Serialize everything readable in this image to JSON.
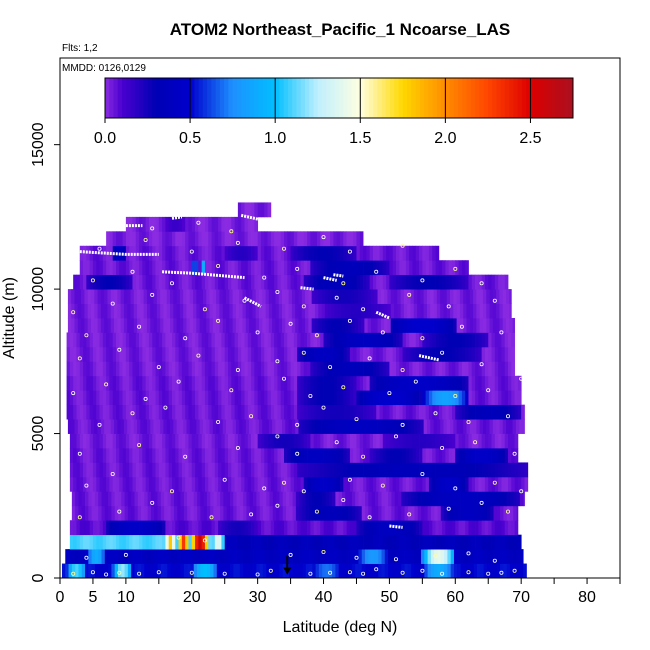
{
  "chart_data": {
    "type": "heatmap",
    "title": "ATOM2 Northeast_Pacific_1 Ncoarse_LAS",
    "subtitle_flights": "Flts: 1,2",
    "subtitle_dates": "MMDD: 0126,0129",
    "xlabel": "Latitude (deg N)",
    "ylabel": "Altitude (m)",
    "xlim": [
      0,
      85
    ],
    "ylim": [
      0,
      18000
    ],
    "x_ticks": [
      0,
      5,
      10,
      20,
      30,
      40,
      50,
      60,
      70,
      80
    ],
    "y_ticks": [
      0,
      5000,
      10000,
      15000
    ],
    "colorbar": {
      "range": [
        0,
        2.75
      ],
      "ticks": [
        0.0,
        0.5,
        1.0,
        1.5,
        2.0,
        2.5
      ],
      "stops": [
        {
          "v": 0.0,
          "color": "#8a2be2"
        },
        {
          "v": 0.1,
          "color": "#4b00d0"
        },
        {
          "v": 0.3,
          "color": "#0000b4"
        },
        {
          "v": 0.5,
          "color": "#0000cd"
        },
        {
          "v": 0.75,
          "color": "#1e90ff"
        },
        {
          "v": 1.0,
          "color": "#00bfff"
        },
        {
          "v": 1.25,
          "color": "#bfefff"
        },
        {
          "v": 1.5,
          "color": "#ffffe0"
        },
        {
          "v": 1.75,
          "color": "#ffd700"
        },
        {
          "v": 2.0,
          "color": "#ff8c00"
        },
        {
          "v": 2.25,
          "color": "#ff4500"
        },
        {
          "v": 2.5,
          "color": "#dd0000"
        },
        {
          "v": 2.75,
          "color": "#aa1020"
        }
      ]
    },
    "layers": [
      {
        "y0": 0,
        "y1": 500,
        "x0": 0.3,
        "x1": 70.8,
        "base": 0.5,
        "features": [
          [
            1,
            4,
            1.1
          ],
          [
            8,
            11,
            1.2
          ],
          [
            20,
            24,
            1.0
          ],
          [
            33,
            36,
            0.4
          ],
          [
            38,
            43,
            0.7
          ],
          [
            55,
            60,
            0.9
          ]
        ]
      },
      {
        "y0": 500,
        "y1": 1000,
        "x0": 0.8,
        "x1": 70.3,
        "base": 0.4,
        "features": [
          [
            4,
            7,
            0.9
          ],
          [
            45,
            50,
            0.8
          ],
          [
            55,
            60,
            1.4
          ]
        ]
      },
      {
        "y0": 1000,
        "y1": 1500,
        "x0": 1.5,
        "x1": 25,
        "base": 1.1,
        "features": [
          [
            16,
            17.5,
            1.8
          ],
          [
            18,
            19.5,
            2.3
          ],
          [
            20,
            22.5,
            2.6
          ],
          [
            23,
            25,
            1.4
          ]
        ]
      },
      {
        "y0": 1000,
        "y1": 1500,
        "x0": 25,
        "x1": 70,
        "base": 0.35,
        "features": [
          [
            40,
            46,
            0.1
          ],
          [
            60,
            66,
            0.3
          ]
        ]
      },
      {
        "y0": 1500,
        "y1": 2000,
        "x0": 1.5,
        "x1": 69.5,
        "base": 0.08,
        "features": [
          [
            7,
            16,
            0.45
          ],
          [
            24,
            30,
            0.25
          ],
          [
            45,
            55,
            0.4
          ]
        ]
      },
      {
        "y0": 2000,
        "y1": 2500,
        "x0": 1.8,
        "x1": 69.5,
        "base": 0.05,
        "features": [
          [
            36,
            46,
            0.35
          ],
          [
            58,
            66,
            0.4
          ]
        ]
      },
      {
        "y0": 2500,
        "y1": 3000,
        "x0": 1.8,
        "x1": 70.5,
        "base": 0.05,
        "features": [
          [
            36,
            42,
            0.3
          ],
          [
            52,
            70,
            0.4
          ]
        ]
      },
      {
        "y0": 3000,
        "y1": 3500,
        "x0": 1.5,
        "x1": 71.0,
        "base": 0.05,
        "features": [
          [
            37,
            43,
            0.45
          ],
          [
            56,
            62,
            0.45
          ]
        ]
      },
      {
        "y0": 3500,
        "y1": 4000,
        "x0": 1.5,
        "x1": 71.0,
        "base": 0.05,
        "features": [
          [
            36,
            71,
            0.35
          ]
        ]
      },
      {
        "y0": 4000,
        "y1": 4500,
        "x0": 1.5,
        "x1": 69.5,
        "base": 0.05,
        "features": [
          [
            34,
            44,
            0.4
          ],
          [
            47,
            55,
            0.3
          ],
          [
            60,
            68,
            0.45
          ]
        ]
      },
      {
        "y0": 4500,
        "y1": 5000,
        "x0": 1.5,
        "x1": 69.5,
        "base": 0.04,
        "features": [
          [
            30,
            38,
            0.25
          ],
          [
            49,
            60,
            0.2
          ]
        ]
      },
      {
        "y0": 5000,
        "y1": 5500,
        "x0": 1.2,
        "x1": 70.5,
        "base": 0.05,
        "features": [
          [
            36,
            55,
            0.4
          ]
        ]
      },
      {
        "y0": 5500,
        "y1": 6000,
        "x0": 1.0,
        "x1": 70.5,
        "base": 0.05,
        "features": [
          [
            36,
            48,
            0.25
          ],
          [
            60,
            70,
            0.35
          ]
        ]
      },
      {
        "y0": 6000,
        "y1": 6500,
        "x0": 1.0,
        "x1": 70.0,
        "base": 0.05,
        "features": [
          [
            36,
            45,
            0.3
          ],
          [
            55,
            62,
            0.85
          ],
          [
            45,
            55,
            0.5
          ]
        ]
      },
      {
        "y0": 6500,
        "y1": 7000,
        "x0": 1.0,
        "x1": 70.0,
        "base": 0.05,
        "features": [
          [
            36,
            45,
            0.3
          ],
          [
            47,
            62,
            0.45
          ]
        ]
      },
      {
        "y0": 7000,
        "y1": 7500,
        "x0": 1.0,
        "x1": 69.0,
        "base": 0.04,
        "features": [
          [
            38,
            50,
            0.35
          ]
        ]
      },
      {
        "y0": 7500,
        "y1": 8000,
        "x0": 1.0,
        "x1": 69.0,
        "base": 0.04,
        "features": [
          [
            36,
            44,
            0.4
          ],
          [
            52,
            64,
            0.3
          ]
        ]
      },
      {
        "y0": 8000,
        "y1": 8500,
        "x0": 1.0,
        "x1": 69.0,
        "base": 0.04,
        "features": [
          [
            40,
            52,
            0.4
          ],
          [
            55,
            65,
            0.3
          ]
        ]
      },
      {
        "y0": 8500,
        "y1": 9000,
        "x0": 1.2,
        "x1": 69.0,
        "base": 0.04,
        "features": [
          [
            38,
            46,
            0.3
          ],
          [
            50,
            60,
            0.5
          ]
        ]
      },
      {
        "y0": 9000,
        "y1": 9500,
        "x0": 1.2,
        "x1": 68.5,
        "base": 0.04,
        "features": [
          [
            40,
            50,
            0.2
          ]
        ]
      },
      {
        "y0": 9500,
        "y1": 10000,
        "x0": 1.2,
        "x1": 68.5,
        "base": 0.04,
        "features": [
          [
            38,
            48,
            0.25
          ]
        ]
      },
      {
        "y0": 10000,
        "y1": 10500,
        "x0": 2.0,
        "x1": 68.0,
        "base": 0.05,
        "features": [
          [
            4,
            11,
            0.3
          ],
          [
            37,
            47,
            0.35
          ],
          [
            50,
            62,
            0.3
          ]
        ]
      },
      {
        "y0": 10500,
        "y1": 11000,
        "x0": 3.0,
        "x1": 62.0,
        "base": 0.05,
        "features": [
          [
            20,
            21,
            0.7
          ],
          [
            21.5,
            22,
            0.9
          ],
          [
            38,
            50,
            0.35
          ]
        ]
      },
      {
        "y0": 11000,
        "y1": 11500,
        "x0": 3.0,
        "x1": 57.5,
        "base": 0.05,
        "features": [
          [
            8,
            10,
            0.45
          ],
          [
            25,
            30,
            0.2
          ],
          [
            35,
            45,
            0.3
          ]
        ]
      },
      {
        "y0": 11500,
        "y1": 12000,
        "x0": 7.0,
        "x1": 46.0,
        "base": 0.03,
        "features": []
      },
      {
        "y0": 12000,
        "y1": 12500,
        "x0": 10.0,
        "x1": 30.0,
        "base": 0.03,
        "features": [
          [
            16,
            19,
            0.15
          ]
        ]
      },
      {
        "y0": 12500,
        "y1": 13000,
        "x0": 27.0,
        "x1": 32.0,
        "base": 0.03,
        "features": []
      }
    ],
    "flight_tracks": [
      [
        [
          3.0,
          11300
        ],
        [
          10.0,
          11200
        ],
        [
          15.0,
          11200
        ]
      ],
      [
        [
          15.5,
          10600
        ],
        [
          20.0,
          10550
        ],
        [
          28.0,
          10400
        ]
      ],
      [
        [
          27.5,
          12550
        ],
        [
          30.5,
          12400
        ]
      ],
      [
        [
          28.0,
          9700
        ],
        [
          30.5,
          9400
        ]
      ],
      [
        [
          36.5,
          10050
        ],
        [
          38.5,
          10000
        ]
      ],
      [
        [
          41.5,
          10500
        ],
        [
          43.0,
          10450
        ]
      ],
      [
        [
          48.0,
          9200
        ],
        [
          50.0,
          9000
        ]
      ],
      [
        [
          65.0,
          11000
        ],
        [
          67.5,
          11050
        ]
      ],
      [
        [
          10.0,
          12200
        ],
        [
          12.5,
          12200
        ]
      ],
      [
        [
          17.0,
          12450
        ],
        [
          18.5,
          12500
        ]
      ],
      [
        [
          40.0,
          10400
        ],
        [
          42.0,
          10300
        ]
      ],
      [
        [
          54.5,
          7700
        ],
        [
          57.5,
          7550
        ]
      ],
      [
        [
          50.0,
          1800
        ],
        [
          52.0,
          1750
        ]
      ]
    ],
    "markers": [
      [
        2,
        150
      ],
      [
        5,
        200
      ],
      [
        7,
        120
      ],
      [
        9,
        180
      ],
      [
        12,
        150
      ],
      [
        15,
        200
      ],
      [
        20,
        180
      ],
      [
        25,
        150
      ],
      [
        30,
        120
      ],
      [
        32,
        250
      ],
      [
        38,
        150
      ],
      [
        41,
        180
      ],
      [
        44,
        200
      ],
      [
        46,
        150
      ],
      [
        48,
        300
      ],
      [
        52,
        180
      ],
      [
        55,
        250
      ],
      [
        58,
        150
      ],
      [
        62,
        200
      ],
      [
        65,
        150
      ],
      [
        67,
        180
      ],
      [
        69,
        250
      ],
      [
        4,
        700
      ],
      [
        10,
        800
      ],
      [
        18,
        1400
      ],
      [
        22,
        1300
      ],
      [
        35,
        800
      ],
      [
        40,
        900
      ],
      [
        45,
        700
      ],
      [
        51,
        650
      ],
      [
        57,
        750
      ],
      [
        62,
        850
      ],
      [
        66,
        600
      ],
      [
        3,
        2100
      ],
      [
        9,
        2300
      ],
      [
        14,
        2600
      ],
      [
        23,
        2100
      ],
      [
        29,
        2200
      ],
      [
        33,
        2500
      ],
      [
        39,
        2300
      ],
      [
        43,
        2700
      ],
      [
        47,
        2100
      ],
      [
        53,
        2200
      ],
      [
        59,
        2400
      ],
      [
        64,
        2600
      ],
      [
        68,
        2300
      ],
      [
        4,
        3200
      ],
      [
        8,
        3600
      ],
      [
        17,
        3000
      ],
      [
        25,
        3400
      ],
      [
        31,
        3100
      ],
      [
        34,
        3300
      ],
      [
        37,
        3000
      ],
      [
        44,
        3400
      ],
      [
        49,
        3200
      ],
      [
        55,
        3600
      ],
      [
        60,
        3100
      ],
      [
        66,
        3300
      ],
      [
        70,
        3000
      ],
      [
        3,
        4300
      ],
      [
        12,
        4600
      ],
      [
        19,
        4200
      ],
      [
        27,
        4500
      ],
      [
        33,
        4900
      ],
      [
        36,
        4300
      ],
      [
        42,
        4700
      ],
      [
        46,
        4200
      ],
      [
        51,
        4900
      ],
      [
        58,
        4500
      ],
      [
        63,
        4700
      ],
      [
        69,
        4300
      ],
      [
        6,
        5300
      ],
      [
        11,
        5700
      ],
      [
        16,
        5900
      ],
      [
        24,
        5400
      ],
      [
        29,
        5600
      ],
      [
        36,
        5300
      ],
      [
        40,
        5900
      ],
      [
        45,
        5500
      ],
      [
        52,
        5300
      ],
      [
        57,
        5700
      ],
      [
        62,
        5400
      ],
      [
        68,
        5600
      ],
      [
        2,
        6400
      ],
      [
        7,
        6700
      ],
      [
        13,
        6200
      ],
      [
        18,
        6800
      ],
      [
        26,
        6500
      ],
      [
        34,
        6900
      ],
      [
        38,
        6300
      ],
      [
        43,
        6600
      ],
      [
        50,
        6400
      ],
      [
        54,
        6800
      ],
      [
        60,
        6300
      ],
      [
        65,
        6500
      ],
      [
        70,
        6900
      ],
      [
        3,
        7600
      ],
      [
        9,
        7900
      ],
      [
        15,
        7300
      ],
      [
        21,
        7700
      ],
      [
        27,
        7200
      ],
      [
        33,
        7500
      ],
      [
        37,
        7800
      ],
      [
        41,
        7300
      ],
      [
        47,
        7600
      ],
      [
        52,
        7200
      ],
      [
        58,
        7800
      ],
      [
        64,
        7400
      ],
      [
        4,
        8400
      ],
      [
        12,
        8700
      ],
      [
        19,
        8300
      ],
      [
        24,
        8900
      ],
      [
        30,
        8500
      ],
      [
        35,
        8800
      ],
      [
        39,
        8400
      ],
      [
        44,
        8900
      ],
      [
        49,
        8500
      ],
      [
        55,
        8300
      ],
      [
        61,
        8700
      ],
      [
        67,
        8500
      ],
      [
        2,
        9200
      ],
      [
        8,
        9500
      ],
      [
        14,
        9800
      ],
      [
        22,
        9300
      ],
      [
        28,
        9600
      ],
      [
        33,
        9900
      ],
      [
        37,
        9400
      ],
      [
        42,
        9700
      ],
      [
        46,
        9300
      ],
      [
        53,
        9800
      ],
      [
        59,
        9400
      ],
      [
        66,
        9600
      ],
      [
        5,
        10300
      ],
      [
        11,
        10600
      ],
      [
        17,
        10200
      ],
      [
        24,
        10800
      ],
      [
        31,
        10400
      ],
      [
        36,
        10700
      ],
      [
        43,
        10200
      ],
      [
        48,
        10600
      ],
      [
        55,
        10300
      ],
      [
        60,
        10700
      ],
      [
        64,
        10200
      ],
      [
        6,
        11400
      ],
      [
        13,
        11700
      ],
      [
        20,
        11300
      ],
      [
        27,
        11600
      ],
      [
        34,
        11400
      ],
      [
        40,
        11800
      ],
      [
        44,
        11300
      ],
      [
        52,
        11500
      ],
      [
        14,
        12100
      ],
      [
        21,
        12300
      ],
      [
        26,
        12000
      ]
    ],
    "arrow_marker": {
      "x": 34.5,
      "y": 150
    }
  }
}
